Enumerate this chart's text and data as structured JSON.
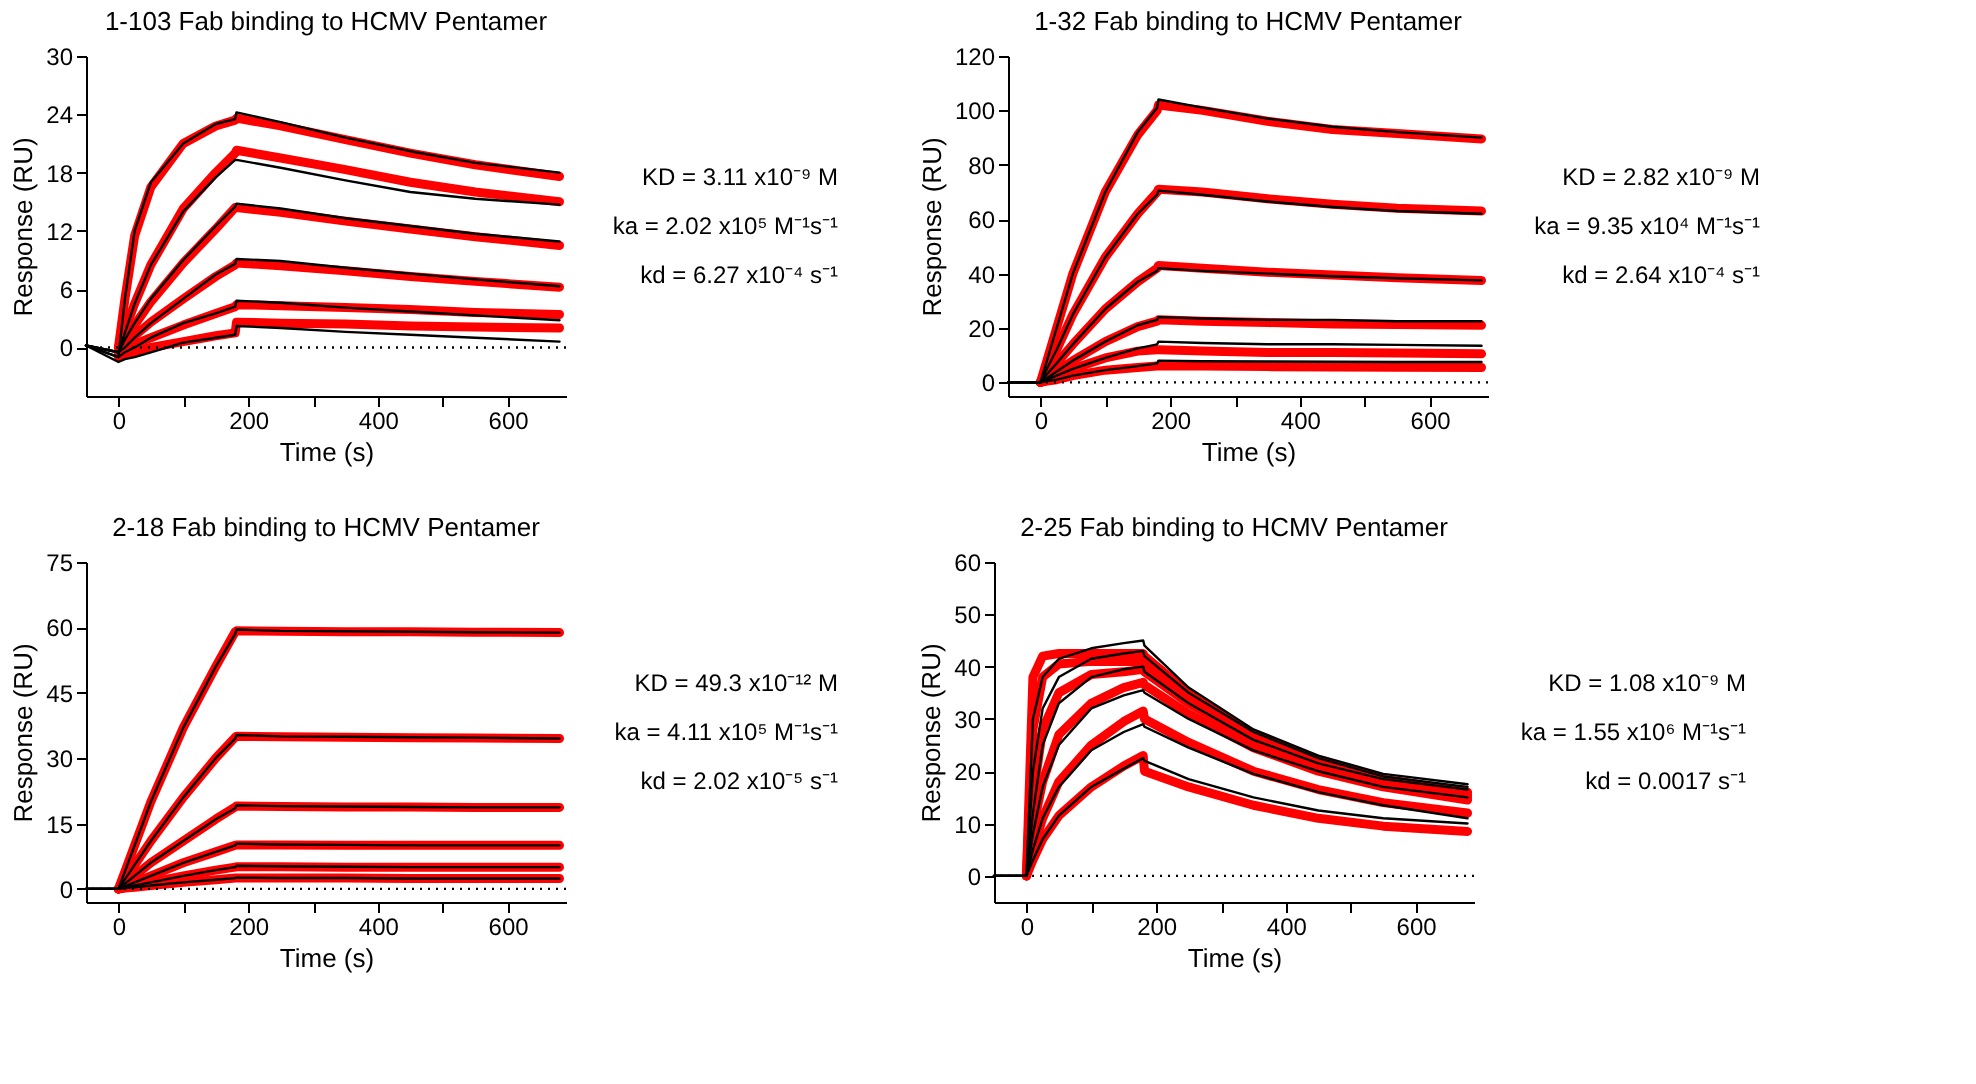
{
  "chart_data": [
    {
      "type": "line",
      "title": "1-103 Fab binding to HCMV Pentamer",
      "xlabel": "Time (s)",
      "ylabel": "Response (RU)",
      "x": [
        -50,
        0,
        10,
        25,
        50,
        100,
        150,
        180,
        182,
        250,
        350,
        450,
        550,
        680
      ],
      "series": [
        {
          "color": "#ff0000",
          "values": [
            null,
            0,
            5,
            11.5,
            16.5,
            21,
            22.8,
            23.4,
            23.6,
            22.8,
            21.4,
            20,
            18.8,
            17.6
          ]
        },
        {
          "color": "#000000",
          "values": [
            0.2,
            -1,
            5,
            12,
            17,
            21,
            23,
            23.5,
            24.2,
            23.2,
            21.6,
            20.2,
            19,
            18
          ]
        },
        {
          "color": "#ff0000",
          "values": [
            null,
            0,
            1.8,
            4.5,
            8.5,
            14.3,
            18,
            20,
            20.3,
            19.5,
            18.3,
            17,
            16,
            15
          ]
        },
        {
          "color": "#000000",
          "values": [
            0.2,
            -0.5,
            1.5,
            4.5,
            8.5,
            14,
            17.5,
            19.3,
            19.3,
            18.5,
            17.2,
            16,
            15.3,
            14.7
          ]
        },
        {
          "color": "#ff0000",
          "values": [
            null,
            0,
            0.8,
            2.3,
            4.7,
            8.7,
            12.2,
            14.4,
            14.4,
            13.9,
            13,
            12.2,
            11.4,
            10.5
          ]
        },
        {
          "color": "#000000",
          "values": [
            0.2,
            -0.5,
            0.8,
            2.5,
            5,
            9,
            12.5,
            14.5,
            14.8,
            14.3,
            13.3,
            12.5,
            11.7,
            10.9
          ]
        },
        {
          "color": "#ff0000",
          "values": [
            null,
            0,
            0.5,
            1.2,
            2.6,
            5,
            7.3,
            8.5,
            8.7,
            8.4,
            7.9,
            7.3,
            6.8,
            6.2
          ]
        },
        {
          "color": "#000000",
          "values": [
            0.2,
            -0.5,
            0,
            1,
            2.5,
            5,
            7.5,
            8.6,
            9.1,
            8.9,
            8.2,
            7.6,
            7,
            6.3
          ]
        },
        {
          "color": "#ff0000",
          "values": [
            null,
            -0.5,
            -0.2,
            0.3,
            1,
            2.3,
            3.5,
            4.2,
            4.4,
            4.3,
            4.1,
            3.9,
            3.6,
            3.4
          ]
        },
        {
          "color": "#000000",
          "values": [
            0.2,
            -1,
            -0.5,
            0,
            1,
            2.5,
            3.5,
            4.2,
            4.8,
            4.6,
            4.1,
            3.7,
            3.3,
            2.8
          ]
        },
        {
          "color": "#ff0000",
          "values": [
            null,
            -1,
            -0.8,
            -0.5,
            0,
            0.6,
            1.2,
            1.5,
            2.6,
            2.5,
            2.4,
            2.2,
            2.1,
            2
          ]
        },
        {
          "color": "#000000",
          "values": [
            0.2,
            -1.5,
            -1.2,
            -1,
            -0.5,
            0.5,
            1,
            1.3,
            2.2,
            2,
            1.6,
            1.3,
            1,
            0.6
          ]
        }
      ],
      "xlim": [
        -50,
        690
      ],
      "xticks": [
        0,
        {
          "value": 100,
          "label": null
        },
        200,
        {
          "value": 300,
          "label": null
        },
        400,
        {
          "value": 500,
          "label": null
        },
        600
      ],
      "ylim": [
        -5,
        30
      ],
      "yticks": [
        0,
        6,
        12,
        18,
        24,
        30
      ],
      "ref_lines": [
        {
          "axis": "y",
          "value": 0,
          "color": "#000000",
          "line_style": "dotted"
        }
      ],
      "annotations": [
        "KD = 3.11 x10⁻⁹ M",
        "ka = 2.02 x10⁵ M⁻¹s⁻¹",
        "kd = 6.27 x10⁻⁴ s⁻¹"
      ]
    },
    {
      "type": "line",
      "title": "1-32 Fab binding to HCMV Pentamer",
      "xlabel": "Time (s)",
      "ylabel": "Response (RU)",
      "x": [
        -50,
        0,
        10,
        25,
        50,
        100,
        150,
        180,
        182,
        250,
        350,
        450,
        550,
        680
      ],
      "series": [
        {
          "color": "#ff0000",
          "values": [
            null,
            0,
            8,
            20,
            40,
            70,
            91,
            100,
            102,
            100,
            96,
            93,
            91.5,
            89.5
          ]
        },
        {
          "color": "#000000",
          "values": [
            0,
            0,
            8,
            20,
            40,
            70,
            92,
            101,
            104,
            101,
            97,
            94,
            92,
            90
          ]
        },
        {
          "color": "#ff0000",
          "values": [
            null,
            0,
            5,
            12,
            25,
            46,
            62,
            70,
            71,
            70,
            67.5,
            65.5,
            64,
            63
          ]
        },
        {
          "color": "#000000",
          "values": [
            0,
            0,
            5,
            12,
            25,
            46,
            62,
            69,
            70.5,
            69,
            66.5,
            64.5,
            63,
            62
          ]
        },
        {
          "color": "#ff0000",
          "values": [
            null,
            0,
            3,
            7,
            14,
            27,
            37,
            42,
            43,
            42,
            40.5,
            39.5,
            38.5,
            37.5
          ]
        },
        {
          "color": "#000000",
          "values": [
            0,
            0,
            3,
            7,
            14,
            27,
            37,
            41,
            42,
            41,
            40,
            39,
            38.3,
            37.5
          ]
        },
        {
          "color": "#ff0000",
          "values": [
            null,
            0,
            1.5,
            4,
            8,
            15,
            20.5,
            22.5,
            23,
            22.5,
            22,
            21.5,
            21.3,
            21
          ]
        },
        {
          "color": "#000000",
          "values": [
            0,
            0,
            1.5,
            4,
            8,
            15,
            21,
            23,
            24,
            23.5,
            23,
            23,
            22.5,
            22.5
          ]
        },
        {
          "color": "#ff0000",
          "values": [
            null,
            0,
            1,
            2.5,
            5,
            9,
            11.5,
            12,
            12,
            11.5,
            11,
            11,
            10.8,
            10.5
          ]
        },
        {
          "color": "#000000",
          "values": [
            0,
            0,
            1,
            2.5,
            5,
            9,
            12.5,
            14,
            15,
            14.5,
            14,
            14,
            13.8,
            13.5
          ]
        },
        {
          "color": "#ff0000",
          "values": [
            null,
            0,
            0.5,
            1,
            2.5,
            4.5,
            5.5,
            6,
            6,
            6,
            5.8,
            5.7,
            5.6,
            5.5
          ]
        },
        {
          "color": "#000000",
          "values": [
            0,
            0,
            0.5,
            1,
            2.5,
            4.5,
            6,
            7,
            8,
            7.8,
            7.7,
            7.6,
            7.5,
            7.5
          ]
        }
      ],
      "xlim": [
        -50,
        690
      ],
      "xticks": [
        0,
        {
          "value": 100,
          "label": null
        },
        200,
        {
          "value": 300,
          "label": null
        },
        400,
        {
          "value": 500,
          "label": null
        },
        600
      ],
      "ylim": [
        -5,
        120
      ],
      "yticks": [
        0,
        20,
        40,
        60,
        80,
        100,
        120
      ],
      "ref_lines": [
        {
          "axis": "y",
          "value": 0,
          "color": "#000000",
          "line_style": "dotted"
        }
      ],
      "annotations": [
        "KD = 2.82 x10⁻⁹ M",
        "ka = 9.35 x10⁴ M⁻¹s⁻¹",
        "kd = 2.64 x10⁻⁴ s⁻¹"
      ]
    },
    {
      "type": "line",
      "title": "2-18 Fab binding to HCMV Pentamer",
      "xlabel": "Time (s)",
      "ylabel": "Response (RU)",
      "x": [
        -50,
        0,
        10,
        25,
        50,
        100,
        150,
        180,
        182,
        250,
        350,
        450,
        550,
        680
      ],
      "series": [
        {
          "color": "#ff0000",
          "values": [
            null,
            0,
            4,
            10,
            20,
            37,
            51,
            59,
            59.2,
            59.1,
            59,
            59,
            58.9,
            58.8
          ]
        },
        {
          "color": "#000000",
          "values": [
            0,
            0,
            4,
            10,
            20,
            37,
            51,
            58.5,
            59.5,
            59.2,
            59.1,
            59,
            58.9,
            58.8
          ]
        },
        {
          "color": "#ff0000",
          "values": [
            null,
            0,
            2.2,
            5.5,
            11,
            21,
            30,
            34.8,
            35,
            34.9,
            34.8,
            34.7,
            34.6,
            34.5
          ]
        },
        {
          "color": "#000000",
          "values": [
            0,
            0,
            2.2,
            5.5,
            11,
            21,
            30,
            34.5,
            35.3,
            35,
            34.9,
            34.8,
            34.7,
            34.5
          ]
        },
        {
          "color": "#ff0000",
          "values": [
            null,
            0,
            1.2,
            3,
            6,
            11,
            16,
            18.8,
            19,
            18.9,
            18.8,
            18.8,
            18.7,
            18.7
          ]
        },
        {
          "color": "#000000",
          "values": [
            0,
            0,
            1.2,
            3,
            6,
            11,
            16,
            18.5,
            19.2,
            19,
            18.9,
            18.8,
            18.7,
            18.7
          ]
        },
        {
          "color": "#ff0000",
          "values": [
            null,
            0,
            0.6,
            1.5,
            3,
            6,
            8.5,
            10,
            10.1,
            10.1,
            10,
            10,
            10,
            10
          ]
        },
        {
          "color": "#000000",
          "values": [
            0,
            0,
            0.6,
            1.5,
            3,
            6,
            8.5,
            10,
            10.4,
            10.2,
            10.1,
            10,
            10,
            10
          ]
        },
        {
          "color": "#ff0000",
          "values": [
            null,
            0,
            0.3,
            0.8,
            1.5,
            3,
            4.3,
            5,
            5.1,
            5.1,
            5,
            5,
            5,
            5
          ]
        },
        {
          "color": "#000000",
          "values": [
            0,
            0,
            0.3,
            0.8,
            1.5,
            3,
            4.3,
            5,
            5.3,
            5.2,
            5.1,
            5,
            5,
            5
          ]
        },
        {
          "color": "#ff0000",
          "values": [
            null,
            0,
            0.2,
            0.4,
            0.8,
            1.5,
            2.1,
            2.5,
            2.5,
            2.5,
            2.5,
            2.4,
            2.4,
            2.4
          ]
        },
        {
          "color": "#000000",
          "values": [
            0,
            0,
            0.2,
            0.4,
            0.8,
            1.5,
            2.1,
            2.5,
            2.6,
            2.5,
            2.5,
            2.4,
            2.4,
            2.4
          ]
        }
      ],
      "xlim": [
        -50,
        690
      ],
      "xticks": [
        0,
        {
          "value": 100,
          "label": null
        },
        200,
        {
          "value": 300,
          "label": null
        },
        400,
        {
          "value": 500,
          "label": null
        },
        600
      ],
      "ylim": [
        -3,
        75
      ],
      "yticks": [
        0,
        15,
        30,
        45,
        60,
        75
      ],
      "ref_lines": [
        {
          "axis": "y",
          "value": 0,
          "color": "#000000",
          "line_style": "dotted"
        }
      ],
      "annotations": [
        "KD = 49.3 x10⁻¹² M",
        "ka = 4.11 x10⁵ M⁻¹s⁻¹",
        "kd = 2.02 x10⁻⁵ s⁻¹"
      ]
    },
    {
      "type": "line",
      "title": "2-25 Fab binding to HCMV Pentamer",
      "xlabel": "Time (s)",
      "ylabel": "Response (RU)",
      "x": [
        -50,
        0,
        10,
        25,
        50,
        100,
        150,
        180,
        182,
        250,
        350,
        450,
        550,
        680
      ],
      "series": [
        {
          "color": "#ff0000",
          "values": [
            null,
            0,
            38,
            42,
            42.5,
            42.5,
            42.5,
            42.5,
            42,
            35,
            27,
            22,
            18.5,
            16
          ]
        },
        {
          "color": "#000000",
          "values": [
            0,
            0,
            30,
            38,
            41.5,
            43.5,
            44.5,
            45,
            44,
            36,
            28,
            23,
            19.5,
            17.5
          ]
        },
        {
          "color": "#ff0000",
          "values": [
            null,
            0,
            28,
            38,
            40.5,
            41,
            41,
            41,
            40.5,
            34,
            26.5,
            21.5,
            18,
            15.5
          ]
        },
        {
          "color": "#000000",
          "values": [
            0,
            0,
            20,
            32,
            38,
            41.5,
            42.5,
            43,
            42,
            35,
            27.5,
            22.5,
            19,
            17
          ]
        },
        {
          "color": "#ff0000",
          "values": [
            null,
            0,
            15,
            28,
            35,
            38.5,
            39,
            39.5,
            39,
            33,
            26,
            21,
            17.5,
            15
          ]
        },
        {
          "color": "#000000",
          "values": [
            0,
            0,
            12,
            25,
            33,
            38,
            39.5,
            40,
            39,
            33,
            26,
            21.5,
            18.5,
            16.5
          ]
        },
        {
          "color": "#ff0000",
          "values": [
            null,
            0,
            9,
            18,
            27,
            33,
            36,
            37,
            36.5,
            31,
            24.5,
            20,
            17,
            14.5
          ]
        },
        {
          "color": "#000000",
          "values": [
            0,
            0,
            8,
            17,
            25,
            32,
            34.5,
            35.5,
            35,
            30,
            24,
            20,
            17,
            15
          ]
        },
        {
          "color": "#ff0000",
          "values": [
            null,
            0,
            5,
            11,
            18,
            25,
            29.5,
            31.5,
            30,
            25.5,
            20,
            16.5,
            14,
            12
          ]
        },
        {
          "color": "#000000",
          "values": [
            0,
            0,
            5,
            11,
            17,
            24,
            27.5,
            29,
            28.5,
            24.5,
            19.5,
            16,
            13.5,
            11
          ]
        },
        {
          "color": "#ff0000",
          "values": [
            null,
            0,
            3,
            7,
            11.5,
            17,
            21,
            23,
            20,
            17,
            13.5,
            11,
            9.5,
            8.5
          ]
        },
        {
          "color": "#000000",
          "values": [
            0,
            0,
            3,
            7,
            11.5,
            17,
            20.5,
            22.5,
            22,
            18.5,
            15,
            12.5,
            11,
            10
          ]
        }
      ],
      "xlim": [
        -50,
        690
      ],
      "xticks": [
        0,
        {
          "value": 100,
          "label": null
        },
        200,
        {
          "value": 300,
          "label": null
        },
        400,
        {
          "value": 500,
          "label": null
        },
        600
      ],
      "ylim": [
        -5,
        60
      ],
      "yticks": [
        0,
        10,
        20,
        30,
        40,
        50,
        60
      ],
      "ref_lines": [
        {
          "axis": "y",
          "value": 0,
          "color": "#000000",
          "line_style": "dotted"
        }
      ],
      "annotations": [
        "KD = 1.08 x10⁻⁹ M",
        "ka = 1.55 x10⁶ M⁻¹s⁻¹",
        "kd = 0.0017 s⁻¹"
      ]
    }
  ]
}
